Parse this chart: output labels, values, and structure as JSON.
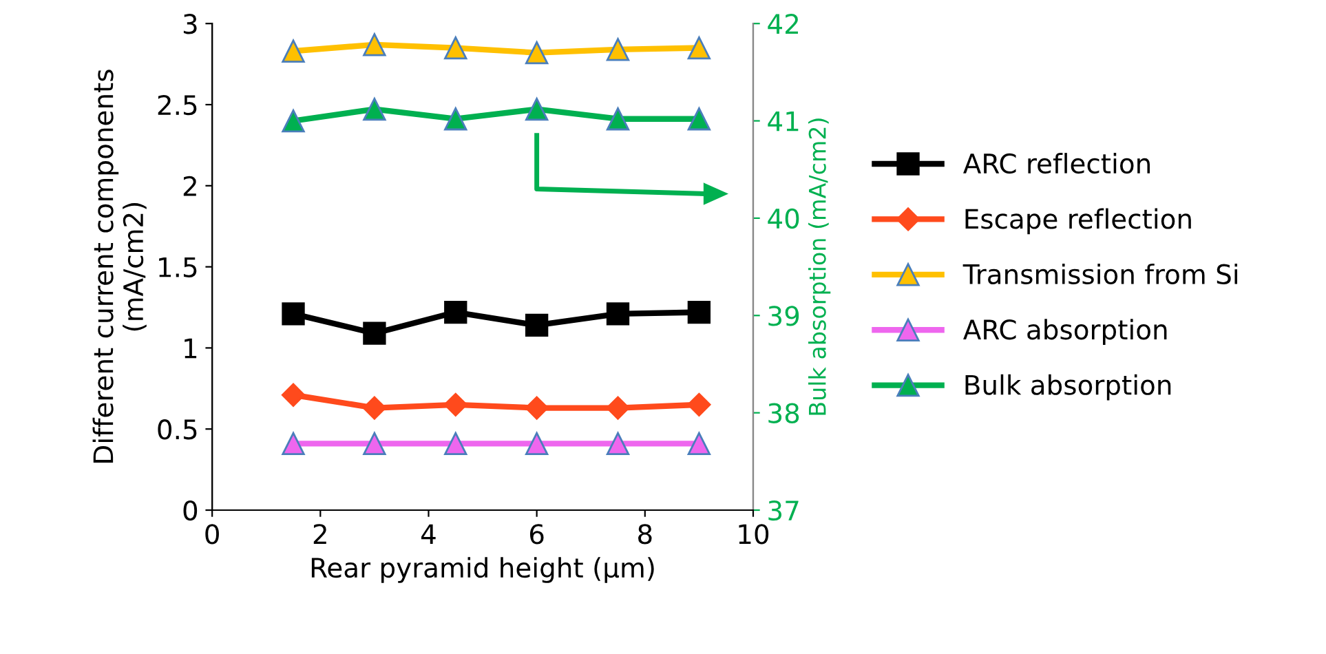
{
  "chart_data": {
    "type": "line",
    "xlabel": "Rear pyramid height (µm)",
    "ylabel": "Different current components\n(mA/cm2)",
    "y2label": "Bulk absorption (mA/cm2)",
    "x": [
      1.5,
      3,
      4.5,
      6,
      7.5,
      9
    ],
    "xlim": [
      0,
      10
    ],
    "xticks": [
      0,
      2,
      4,
      6,
      8,
      10
    ],
    "ylim": [
      0,
      3
    ],
    "yticks": [
      0,
      0.5,
      1,
      1.5,
      2,
      2.5,
      3
    ],
    "y2lim": [
      37,
      42
    ],
    "y2ticks": [
      37,
      38,
      39,
      40,
      41,
      42
    ],
    "grid": false,
    "legend": "right",
    "line_style": "solid",
    "series": [
      {
        "name": "ARC reflection",
        "color": "#000000",
        "marker": "square",
        "values": [
          1.21,
          1.09,
          1.22,
          1.14,
          1.21,
          1.22
        ]
      },
      {
        "name": "Escape reflection",
        "color": "#ff4a1c",
        "marker": "diamond",
        "values": [
          0.71,
          0.63,
          0.65,
          0.63,
          0.63,
          0.65
        ]
      },
      {
        "name": "Transmission from Si",
        "color": "#ffc000",
        "marker": "triangle",
        "values": [
          2.83,
          2.87,
          2.85,
          2.82,
          2.84,
          2.85
        ]
      },
      {
        "name": "ARC absorption",
        "color": "#ee66ee",
        "marker": "triangle",
        "values": [
          0.41,
          0.41,
          0.41,
          0.41,
          0.41,
          0.41
        ]
      },
      {
        "name": "Bulk absorption",
        "color": "#00b050",
        "marker": "triangle",
        "axis": "y2",
        "values": [
          41.0,
          41.12,
          41.02,
          41.12,
          41.02,
          41.02
        ]
      }
    ]
  }
}
